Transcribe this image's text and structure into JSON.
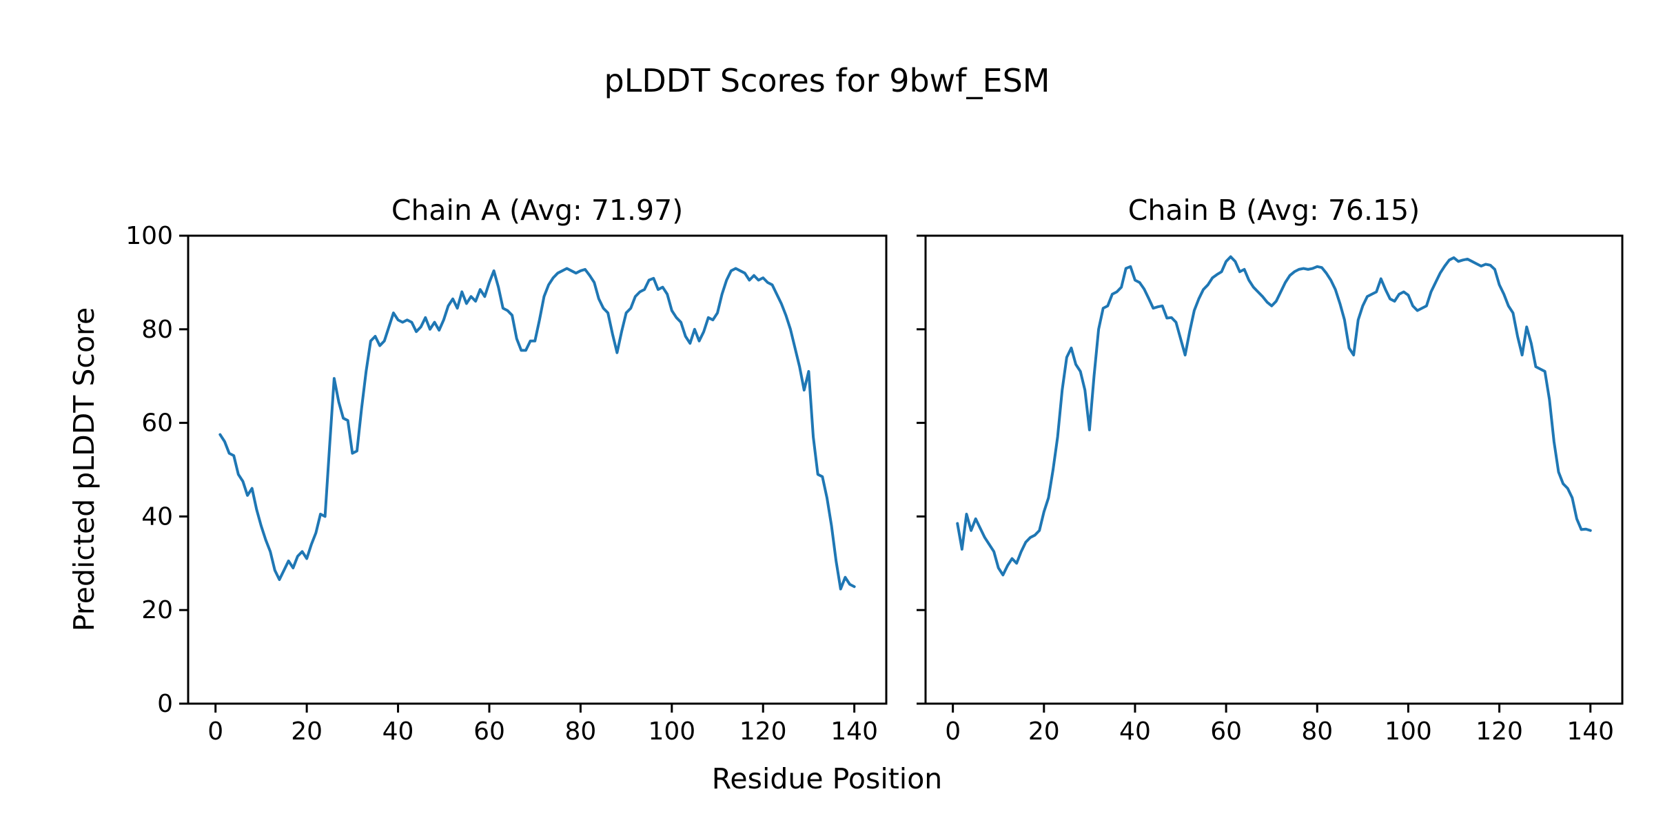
{
  "figure": {
    "suptitle": "pLDDT Scores for 9bwf_ESM",
    "xlabel": "Residue Position",
    "ylabel": "Predicted pLDDT Score",
    "line_color": "#1f77b4",
    "axis_color": "#000000",
    "background_color": "#ffffff"
  },
  "chart_data": [
    {
      "type": "line",
      "name": "Chain A",
      "title": "Chain A (Avg: 71.97)",
      "avg": 71.97,
      "x_start": 1,
      "xlim": [
        -6,
        147
      ],
      "ylim": [
        0,
        100
      ],
      "xticks": [
        0,
        20,
        40,
        60,
        80,
        100,
        120,
        140
      ],
      "yticks": [
        0,
        20,
        40,
        60,
        80,
        100
      ],
      "show_ytick_labels": true,
      "y": [
        57.5,
        56.0,
        53.5,
        53.0,
        49.0,
        47.5,
        44.5,
        46.0,
        41.5,
        38.0,
        35.0,
        32.5,
        28.5,
        26.5,
        28.5,
        30.5,
        29.0,
        31.5,
        32.5,
        31.0,
        34.0,
        36.5,
        40.5,
        40.0,
        55.0,
        69.5,
        64.5,
        61.0,
        60.5,
        53.5,
        54.0,
        63.0,
        71.0,
        77.5,
        78.5,
        76.5,
        77.5,
        80.5,
        83.5,
        82.0,
        81.5,
        82.0,
        81.5,
        79.5,
        80.5,
        82.5,
        80.0,
        81.5,
        79.8,
        82.0,
        85.0,
        86.5,
        84.5,
        88.0,
        85.5,
        87.0,
        86.0,
        88.5,
        87.0,
        90.0,
        92.5,
        89.0,
        84.5,
        84.0,
        83.0,
        78.0,
        75.5,
        75.5,
        77.5,
        77.5,
        82.0,
        87.0,
        89.5,
        91.0,
        92.0,
        92.5,
        93.0,
        92.5,
        92.0,
        92.5,
        92.8,
        91.5,
        90.0,
        86.5,
        84.5,
        83.5,
        79.0,
        75.0,
        79.5,
        83.5,
        84.5,
        87.0,
        88.0,
        88.5,
        90.5,
        90.9,
        88.5,
        89.0,
        87.5,
        84.0,
        82.5,
        81.5,
        78.5,
        77.0,
        80.0,
        77.5,
        79.5,
        82.5,
        82.0,
        83.5,
        87.5,
        90.5,
        92.5,
        93.0,
        92.5,
        92.0,
        90.5,
        91.5,
        90.5,
        91.0,
        90.0,
        89.5,
        87.5,
        85.5,
        83.0,
        80.0,
        76.0,
        72.0,
        67.0,
        71.0,
        57.0,
        49.0,
        48.5,
        44.0,
        38.0,
        30.5,
        24.5,
        27.0,
        25.5,
        25.0
      ]
    },
    {
      "type": "line",
      "name": "Chain B",
      "title": "Chain B (Avg: 76.15)",
      "avg": 76.15,
      "x_start": 1,
      "xlim": [
        -6,
        147
      ],
      "ylim": [
        0,
        100
      ],
      "xticks": [
        0,
        20,
        40,
        60,
        80,
        100,
        120,
        140
      ],
      "yticks": [
        0,
        20,
        40,
        60,
        80,
        100
      ],
      "show_ytick_labels": false,
      "y": [
        38.5,
        33.0,
        40.5,
        37.0,
        39.5,
        37.5,
        35.5,
        34.0,
        32.5,
        29.0,
        27.5,
        29.5,
        31.0,
        30.0,
        32.5,
        34.5,
        35.5,
        36.0,
        37.0,
        41.0,
        44.0,
        50.0,
        57.0,
        67.0,
        74.0,
        76.0,
        72.5,
        71.0,
        67.0,
        58.5,
        70.0,
        80.0,
        84.5,
        85.0,
        87.5,
        88.0,
        89.0,
        93.0,
        93.4,
        90.5,
        90.0,
        88.6,
        86.6,
        84.5,
        84.8,
        85.0,
        82.4,
        82.5,
        81.5,
        78.0,
        74.5,
        79.5,
        84.0,
        86.5,
        88.5,
        89.5,
        91.0,
        91.7,
        92.3,
        94.5,
        95.5,
        94.5,
        92.3,
        92.8,
        90.5,
        89.0,
        88.0,
        87.0,
        85.8,
        85.0,
        86.0,
        88.0,
        90.0,
        91.5,
        92.3,
        92.8,
        93.0,
        92.8,
        93.0,
        93.4,
        93.2,
        92.0,
        90.5,
        88.5,
        85.5,
        82.0,
        76.0,
        74.5,
        82.0,
        85.0,
        87.0,
        87.5,
        88.0,
        90.8,
        88.5,
        86.5,
        86.0,
        87.5,
        88.0,
        87.3,
        85.0,
        84.0,
        84.5,
        85.0,
        88.0,
        90.0,
        92.0,
        93.5,
        94.8,
        95.3,
        94.5,
        94.8,
        95.0,
        94.5,
        94.0,
        93.5,
        93.9,
        93.7,
        92.8,
        89.5,
        87.5,
        85.0,
        83.5,
        78.5,
        74.5,
        80.5,
        77.0,
        72.0,
        71.5,
        71.0,
        65.0,
        56.0,
        49.5,
        47.0,
        46.0,
        44.0,
        39.5,
        37.2,
        37.3,
        37.0
      ]
    }
  ]
}
